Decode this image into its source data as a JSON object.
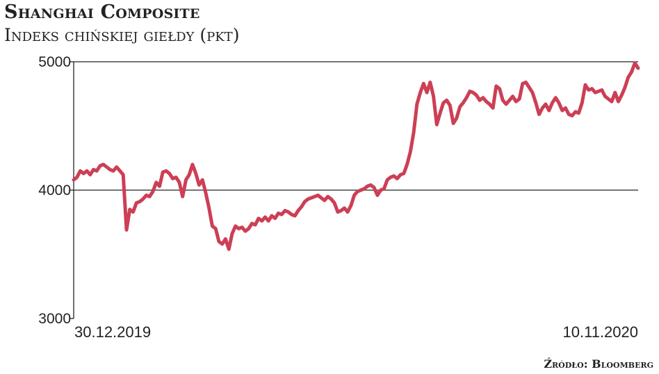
{
  "header": {
    "title": "Shanghai Composite",
    "subtitle": "Indeks chińskiej giełdy (pkt)"
  },
  "footer": {
    "source": "Źródło: Bloomberg"
  },
  "colors": {
    "line": "#cc3f55",
    "axis": "#222222",
    "text": "#222222"
  },
  "chart_data": {
    "type": "line",
    "title": "Shanghai Composite",
    "subtitle": "Indeks chińskiej giełdy (pkt)",
    "xlabel": "",
    "ylabel": "",
    "ylim": [
      3000,
      5000
    ],
    "yticks": [
      3000,
      4000,
      5000
    ],
    "ytick_labels": [
      "3000",
      "4000",
      "5000"
    ],
    "gridlines": [
      4000
    ],
    "xtick_labels": [
      "30.12.2019",
      "10.11.2020"
    ],
    "x_start": "30.12.2019",
    "x_end": "10.11.2020",
    "series": [
      {
        "values": [
          4080,
          4100,
          4150,
          4130,
          4150,
          4120,
          4160,
          4150,
          4190,
          4200,
          4180,
          4160,
          4150,
          4180,
          4150,
          4120,
          3690,
          3850,
          3830,
          3900,
          3910,
          3930,
          3960,
          3950,
          3990,
          4060,
          4030,
          4140,
          4150,
          4130,
          4090,
          4100,
          4060,
          3950,
          4080,
          4120,
          4200,
          4130,
          4040,
          4080,
          3980,
          3860,
          3720,
          3700,
          3600,
          3580,
          3620,
          3540,
          3660,
          3720,
          3700,
          3710,
          3680,
          3700,
          3740,
          3730,
          3780,
          3760,
          3790,
          3760,
          3800,
          3780,
          3820,
          3810,
          3840,
          3830,
          3810,
          3800,
          3840,
          3870,
          3910,
          3930,
          3940,
          3950,
          3960,
          3940,
          3920,
          3950,
          3930,
          3900,
          3830,
          3840,
          3860,
          3830,
          3880,
          3960,
          3990,
          4000,
          4010,
          4030,
          4040,
          4020,
          3960,
          4000,
          4010,
          4080,
          4100,
          4110,
          4090,
          4120,
          4130,
          4200,
          4300,
          4450,
          4670,
          4760,
          4830,
          4760,
          4840,
          4730,
          4510,
          4600,
          4680,
          4700,
          4660,
          4520,
          4560,
          4650,
          4680,
          4720,
          4770,
          4760,
          4740,
          4700,
          4720,
          4690,
          4670,
          4640,
          4810,
          4790,
          4700,
          4670,
          4700,
          4730,
          4690,
          4710,
          4830,
          4840,
          4800,
          4760,
          4680,
          4590,
          4640,
          4670,
          4620,
          4680,
          4720,
          4680,
          4620,
          4640,
          4590,
          4580,
          4610,
          4600,
          4680,
          4820,
          4780,
          4790,
          4760,
          4770,
          4780,
          4730,
          4710,
          4690,
          4760,
          4690,
          4740,
          4800,
          4880,
          4920,
          4990,
          4950
        ]
      }
    ]
  }
}
